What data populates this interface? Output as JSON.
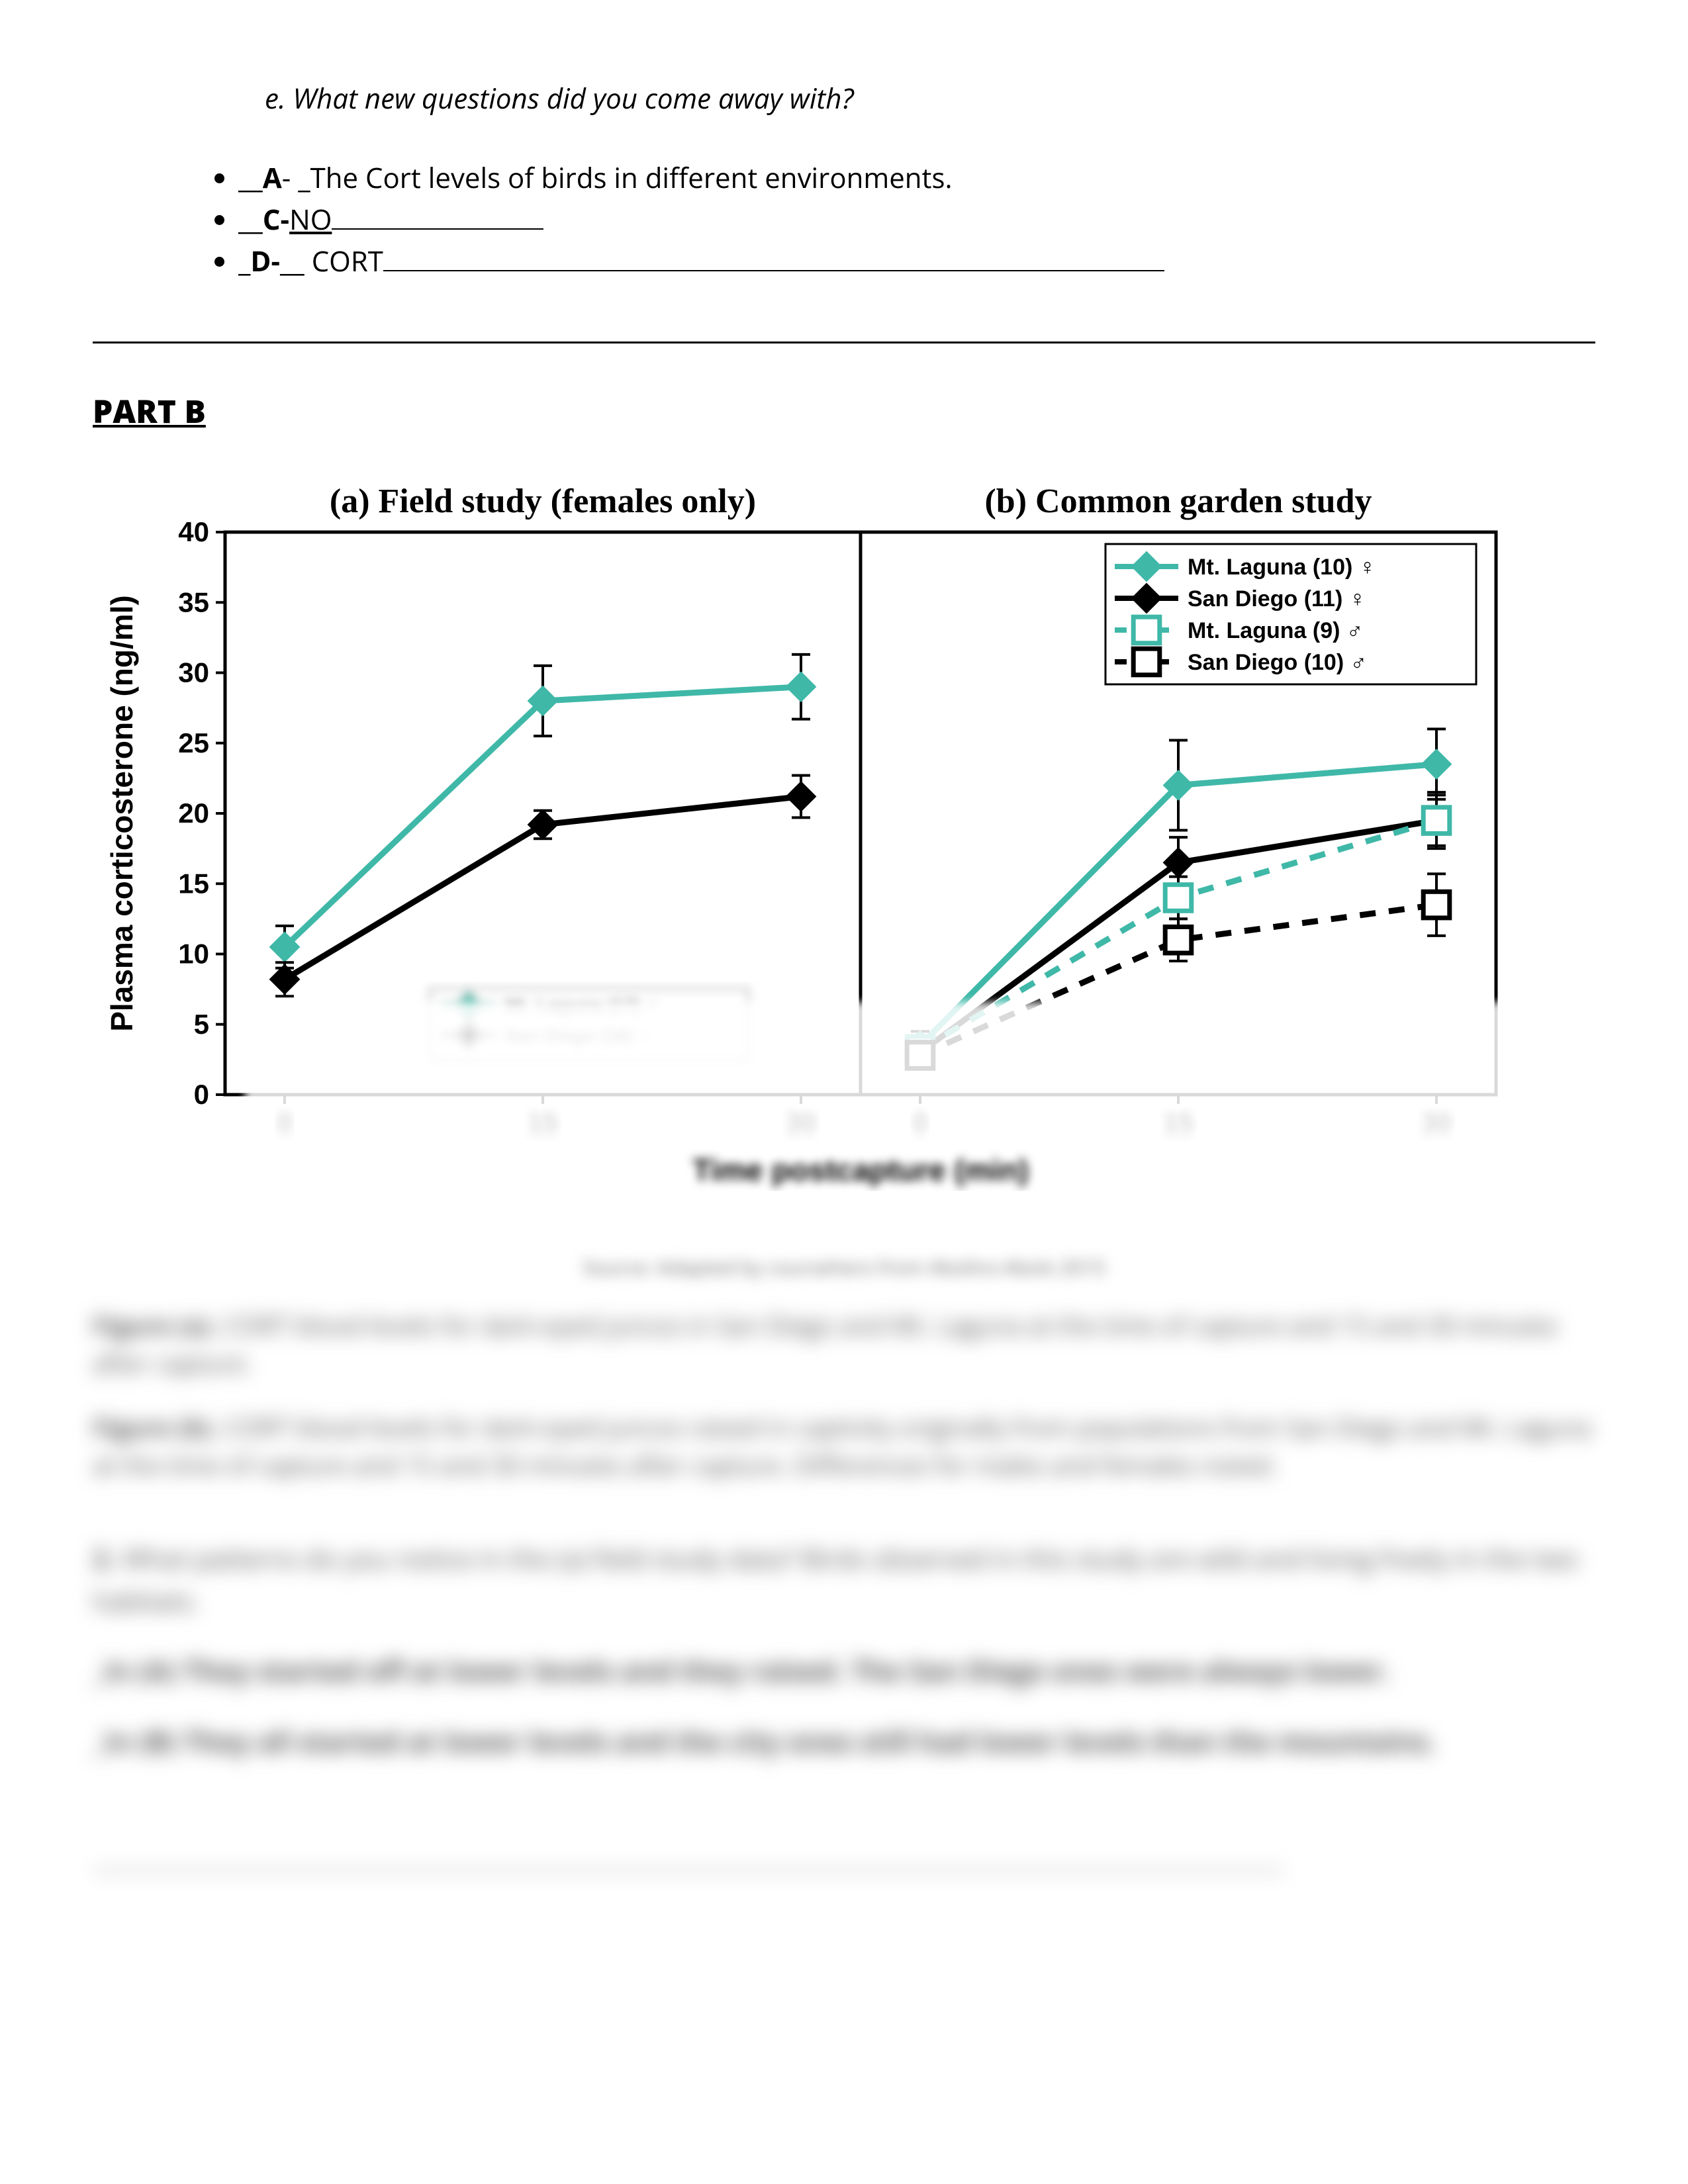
{
  "question_e": "e.    What new questions did you come away with?",
  "bullets": {
    "a_prefix": "__",
    "a_label": "A",
    "a_text": "- _The Cort levels of birds in different environments.",
    "c_prefix": "__",
    "c_label": "C-",
    "c_text": "NO",
    "c_line_width": 320,
    "d_prefix": "_",
    "d_label": "D-",
    "d_suffix": "__",
    "d_text": " CORT",
    "d_line_width": 1180
  },
  "part_b": "PART B",
  "chart": {
    "panel_a_title": "(a) Field study (females only)",
    "panel_b_title": "(b) Common garden study",
    "y_label": "Plasma corticosterone (ng/ml)",
    "x_label": "Time postcapture (min)",
    "y_ticks": [
      0,
      5,
      10,
      15,
      20,
      25,
      30,
      35,
      40
    ],
    "x_ticks": [
      0,
      15,
      30
    ],
    "ylim": [
      0,
      40
    ],
    "colors": {
      "teal": "#3fb8a8",
      "black": "#000000",
      "axis": "#000000",
      "white": "#ffffff"
    },
    "legend_a": [
      {
        "label": "Mt. Laguna (17) ♀",
        "color": "#3fb8a8",
        "marker": "diamond-filled",
        "dash": "solid"
      },
      {
        "label": "San Diego (16) ♀",
        "color": "#000000",
        "marker": "diamond-filled",
        "dash": "solid"
      }
    ],
    "legend_b": [
      {
        "label": "Mt. Laguna (10) ♀",
        "color": "#3fb8a8",
        "marker": "diamond-filled",
        "dash": "solid"
      },
      {
        "label": "San Diego (11)  ♀",
        "color": "#000000",
        "marker": "diamond-filled",
        "dash": "solid"
      },
      {
        "label": "Mt. Laguna (9) ♂",
        "color": "#3fb8a8",
        "marker": "square-open",
        "dash": "dashed"
      },
      {
        "label": "San Diego (10) ♂",
        "color": "#000000",
        "marker": "square-open",
        "dash": "dashed"
      }
    ],
    "panel_a_series": {
      "mt_laguna_f": {
        "x": [
          0,
          15,
          30
        ],
        "y": [
          10.5,
          28,
          29
        ],
        "err": [
          1.5,
          2.5,
          2.3
        ],
        "color": "#3fb8a8",
        "marker": "diamond-filled",
        "dash": "solid"
      },
      "san_diego_f": {
        "x": [
          0,
          15,
          30
        ],
        "y": [
          8.2,
          19.2,
          21.2
        ],
        "err": [
          1.2,
          1.0,
          1.5
        ],
        "color": "#000000",
        "marker": "diamond-filled",
        "dash": "solid"
      }
    },
    "panel_b_series": {
      "mt_laguna_f": {
        "x": [
          0,
          15,
          30
        ],
        "y": [
          3.5,
          22,
          23.5
        ],
        "err": [
          1.0,
          3.2,
          2.5
        ],
        "color": "#3fb8a8",
        "marker": "diamond-filled",
        "dash": "solid"
      },
      "san_diego_f": {
        "x": [
          0,
          15,
          30
        ],
        "y": [
          3.0,
          16.5,
          19.5
        ],
        "err": [
          1.0,
          1.8,
          2.0
        ],
        "color": "#000000",
        "marker": "diamond-filled",
        "dash": "solid"
      },
      "mt_laguna_m": {
        "x": [
          0,
          15,
          30
        ],
        "y": [
          3.2,
          14.0,
          19.5
        ],
        "err": [
          1.0,
          1.5,
          1.8
        ],
        "color": "#3fb8a8",
        "marker": "square-open",
        "dash": "dashed"
      },
      "san_diego_m": {
        "x": [
          0,
          15,
          30
        ],
        "y": [
          2.8,
          11.0,
          13.5
        ],
        "err": [
          1.0,
          1.5,
          2.2
        ],
        "color": "#000000",
        "marker": "square-open",
        "dash": "dashed"
      }
    },
    "line_width": 9,
    "marker_size": 22,
    "title_fontsize": 52,
    "tick_fontsize": 42,
    "label_fontsize": 46,
    "legend_fontsize": 34
  },
  "source_caption": "Source: Adapted by coursehero from Abolins-Abols 2015",
  "fig_a_desc_bold": "Figure (a).",
  "fig_a_desc": " CORT blood levels for dark-eyed juncos in San Diego and Mt. Laguna at the time of capture and 15 and 30 minutes after capture.",
  "fig_b_desc_bold": "Figure (b).",
  "fig_b_desc": " CORT blood levels for dark-eyed juncos raised in captivity originally from populations from San Diego and Mt. Laguna at the time of capture and 15 and 30 minutes after capture. Differences for males and females noted.",
  "q2_bold": "2.",
  "q2": " What patterns do you notice in the (a) field study data? Birds observed in this study are wild and living freely in the two habitats.",
  "ans_a": "_in (A) They started off at lower levels and they raised. The San Diego ones were always lower.",
  "ans_b": "_In (B) They all started at lower levels and the city ones still had lower levels than the mountains."
}
